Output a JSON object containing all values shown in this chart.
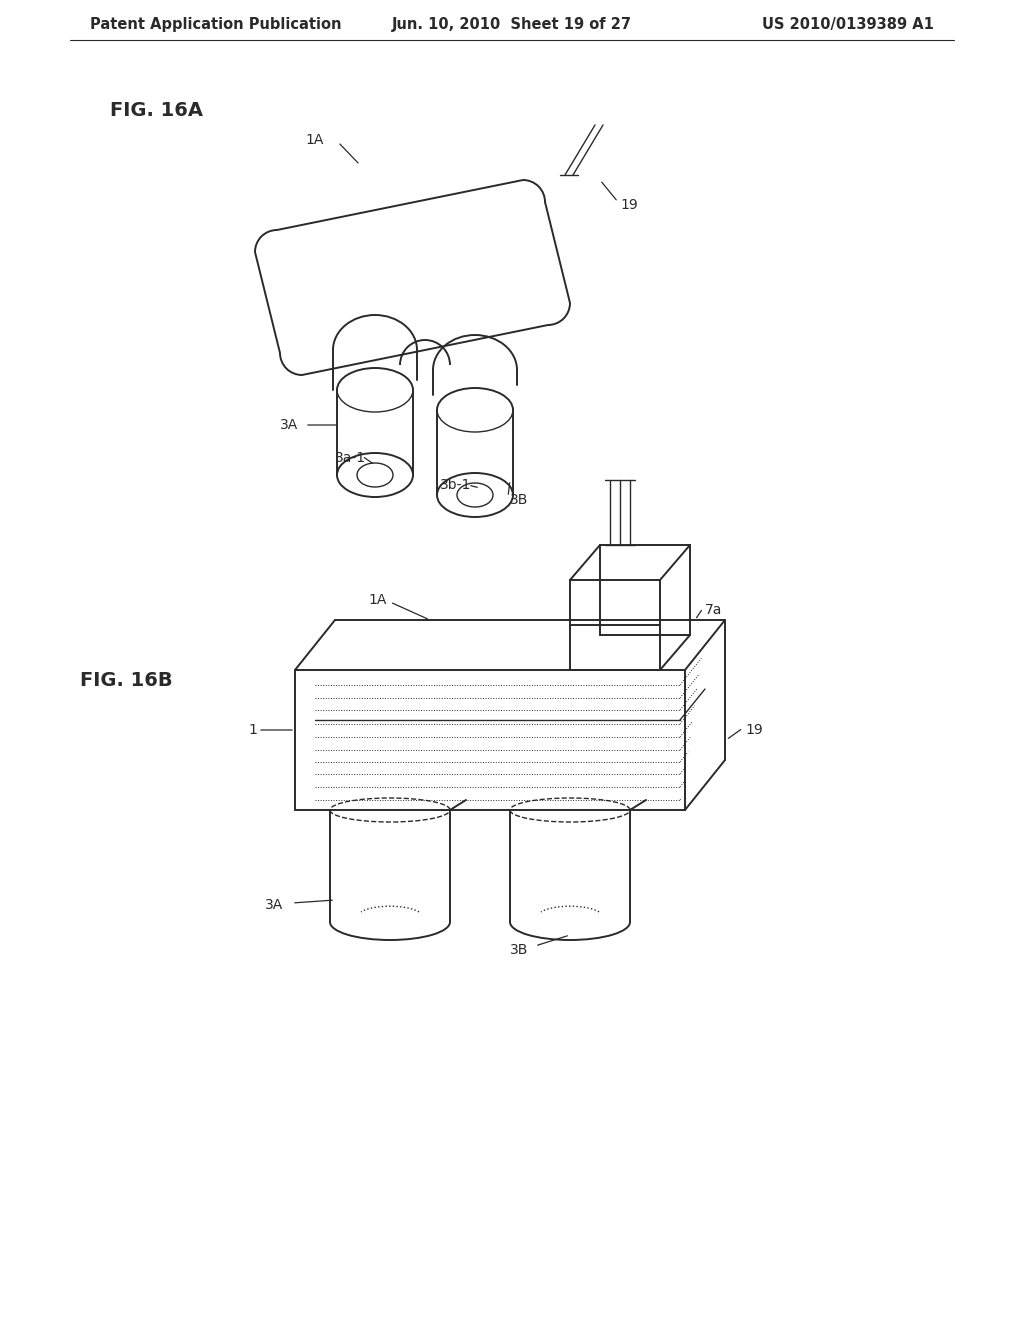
{
  "background_color": "#ffffff",
  "header_left": "Patent Application Publication",
  "header_center": "Jun. 10, 2010  Sheet 19 of 27",
  "header_right": "US 2010/0139389 A1",
  "header_fontsize": 10.5,
  "fig16a_label": "FIG. 16A",
  "fig16b_label": "FIG. 16B",
  "line_color": "#2a2a2a",
  "annotation_fontsize": 10,
  "label_fontsize": 14
}
